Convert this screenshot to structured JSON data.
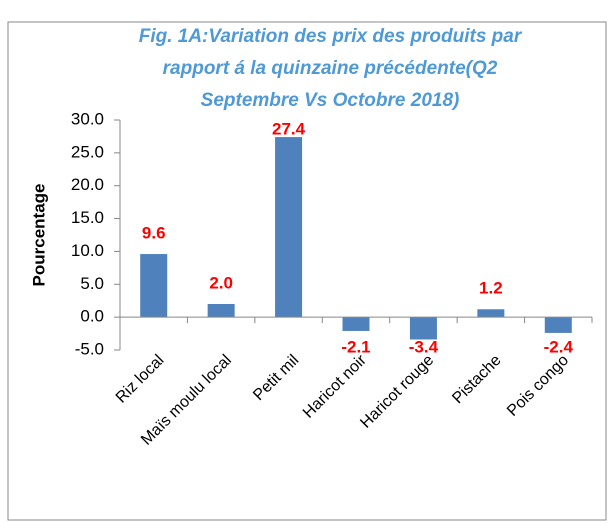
{
  "chart_data": {
    "type": "bar",
    "title": [
      "Fig. 1A:Variation des prix des produits par",
      "rapport á la quinzaine précédente(Q2",
      "Septembre Vs Octobre 2018)"
    ],
    "y_label": "Pourcentage",
    "categories": [
      "Riz local",
      "Maïs moulu  local",
      "Petit mil",
      "Haricot noir",
      "Haricot rouge",
      "Pistache",
      "Pois congo"
    ],
    "values": [
      9.6,
      2.0,
      27.4,
      -2.1,
      -3.4,
      1.2,
      -2.4
    ],
    "value_labels": [
      "9.6",
      "2.0",
      "27.4",
      "-2.1",
      "-3.4",
      "1.2",
      "-2.4"
    ],
    "color": "#4f81bd",
    "label_color": "#ff0000",
    "title_color": "#4f9ad6",
    "ylim": [
      -5,
      30
    ],
    "yticks": [
      {
        "value": -5,
        "label": "-5.0"
      },
      {
        "value": 0,
        "label": "0.0"
      },
      {
        "value": 5,
        "label": "5.0"
      },
      {
        "value": 10,
        "label": "10.0"
      },
      {
        "value": 15,
        "label": "15.0"
      },
      {
        "value": 20,
        "label": "20.0"
      },
      {
        "value": 25,
        "label": "25.0"
      },
      {
        "value": 30,
        "label": "30.0"
      }
    ],
    "grid": false
  }
}
